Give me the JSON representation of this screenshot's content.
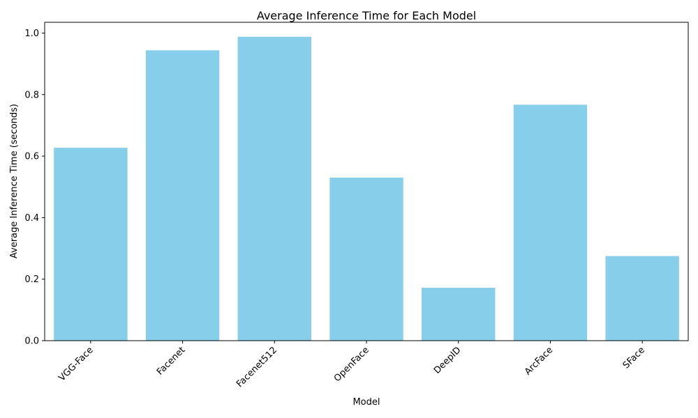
{
  "chart_data": {
    "type": "bar",
    "title": "Average Inference Time for Each Model",
    "xlabel": "Model",
    "ylabel": "Average Inference Time (seconds)",
    "categories": [
      "VGG-Face",
      "Facenet",
      "Facenet512",
      "OpenFace",
      "DeepID",
      "ArcFace",
      "SFace"
    ],
    "values": [
      0.627,
      0.944,
      0.988,
      0.53,
      0.172,
      0.767,
      0.275
    ],
    "ylim": [
      0,
      1.035
    ],
    "yticks": [
      0.0,
      0.2,
      0.4,
      0.6,
      0.8,
      1.0
    ],
    "ytick_labels": [
      "0.0",
      "0.2",
      "0.4",
      "0.6",
      "0.8",
      "1.0"
    ],
    "bar_color": "#87ceeb",
    "grid": false,
    "legend": "none"
  }
}
